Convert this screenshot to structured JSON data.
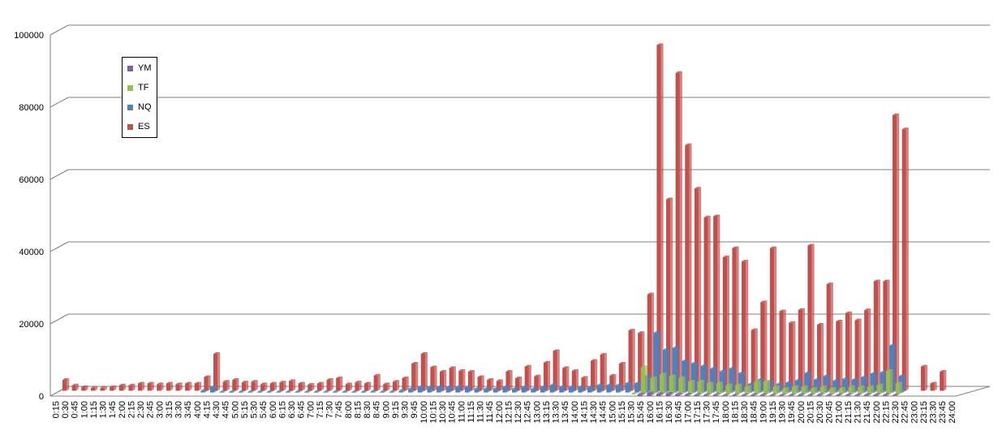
{
  "chart_data": {
    "type": "bar",
    "ylim": [
      0,
      100000
    ],
    "yticks": [
      0,
      20000,
      40000,
      60000,
      80000,
      100000
    ],
    "grid": true,
    "legend_position": "top-left",
    "categories": [
      "0:15",
      "0:30",
      "0:45",
      "1:00",
      "1:15",
      "1:30",
      "1:45",
      "2:00",
      "2:15",
      "2:30",
      "2:45",
      "3:00",
      "3:15",
      "3:30",
      "3:45",
      "4:00",
      "4:15",
      "4:30",
      "4:45",
      "5:00",
      "5:15",
      "5:30",
      "5:45",
      "6:00",
      "6:15",
      "6:30",
      "6:45",
      "7:00",
      "7:15",
      "7:30",
      "7:45",
      "8:00",
      "8:15",
      "8:30",
      "8:45",
      "9:00",
      "9:15",
      "9:30",
      "9:45",
      "10:00",
      "10:15",
      "10:30",
      "10:45",
      "11:00",
      "11:15",
      "11:30",
      "11:45",
      "12:00",
      "12:15",
      "12:30",
      "12:45",
      "13:00",
      "13:15",
      "13:30",
      "13:45",
      "14:00",
      "14:15",
      "14:30",
      "14:45",
      "15:00",
      "15:15",
      "15:30",
      "15:45",
      "16:00",
      "16:15",
      "16:30",
      "16:45",
      "17:00",
      "17:15",
      "17:30",
      "17:45",
      "18:00",
      "18:15",
      "18:30",
      "18:45",
      "19:00",
      "19:15",
      "19:30",
      "19:45",
      "20:00",
      "20:15",
      "20:30",
      "20:45",
      "21:00",
      "21:15",
      "21:30",
      "21:45",
      "22:00",
      "22:15",
      "22:30",
      "22:45",
      "23:00",
      "23:15",
      "23:30",
      "23:45",
      "24:00"
    ],
    "series": [
      {
        "name": "YM",
        "color": "#7e5fa6",
        "values": [
          0,
          0,
          0,
          0,
          0,
          0,
          0,
          0,
          0,
          0,
          0,
          0,
          0,
          0,
          0,
          0,
          0,
          0,
          0,
          0,
          0,
          0,
          0,
          0,
          0,
          0,
          0,
          0,
          0,
          0,
          0,
          0,
          0,
          0,
          0,
          0,
          0,
          0,
          0,
          0,
          0,
          0,
          0,
          0,
          0,
          0,
          0,
          0,
          0,
          0,
          0,
          0,
          0,
          0,
          0,
          0,
          0,
          0,
          0,
          0,
          0,
          0,
          500,
          800,
          600,
          700,
          500,
          400,
          300,
          300,
          300,
          200,
          200,
          200,
          300,
          300,
          200,
          200,
          200,
          300,
          200,
          300,
          200,
          200,
          200,
          200,
          300,
          300,
          300,
          200,
          0,
          0,
          0,
          0,
          0,
          0
        ]
      },
      {
        "name": "TF",
        "color": "#9bbb59",
        "values": [
          0,
          0,
          0,
          0,
          0,
          0,
          0,
          0,
          0,
          0,
          0,
          0,
          0,
          0,
          0,
          0,
          0,
          0,
          0,
          0,
          0,
          0,
          0,
          0,
          0,
          0,
          0,
          0,
          0,
          0,
          0,
          0,
          0,
          0,
          0,
          0,
          0,
          0,
          0,
          0,
          0,
          0,
          0,
          0,
          0,
          0,
          0,
          0,
          0,
          0,
          0,
          0,
          0,
          0,
          0,
          0,
          0,
          0,
          0,
          0,
          0,
          200,
          7500,
          4500,
          5500,
          5000,
          4500,
          3500,
          3500,
          3000,
          3000,
          2500,
          2500,
          2000,
          3500,
          3500,
          2000,
          1500,
          2000,
          2000,
          1500,
          2000,
          1500,
          1500,
          2000,
          2000,
          2000,
          2500,
          6500,
          3000,
          0,
          0,
          0,
          0,
          0,
          0
        ]
      },
      {
        "name": "NQ",
        "color": "#4f81bd",
        "values": [
          0,
          0,
          0,
          0,
          0,
          0,
          0,
          0,
          0,
          0,
          0,
          0,
          0,
          0,
          0,
          500,
          1500,
          200,
          200,
          200,
          200,
          200,
          200,
          200,
          200,
          200,
          200,
          200,
          200,
          200,
          200,
          200,
          200,
          300,
          200,
          200,
          500,
          1000,
          1500,
          1500,
          1500,
          1500,
          1500,
          1500,
          1000,
          1000,
          1000,
          1500,
          1000,
          1500,
          1000,
          1500,
          2000,
          1500,
          1500,
          1500,
          1500,
          2000,
          2000,
          2000,
          2500,
          2500,
          4500,
          16500,
          11800,
          12300,
          8700,
          8000,
          7300,
          6600,
          5800,
          6600,
          5300,
          2300,
          3500,
          3000,
          2300,
          2700,
          3300,
          5300,
          3500,
          4500,
          3200,
          3700,
          3500,
          4200,
          5200,
          5500,
          13000,
          4500,
          0,
          0,
          0,
          0,
          0,
          0
        ]
      },
      {
        "name": "ES",
        "color": "#c0504d",
        "values": [
          3000,
          1500,
          1000,
          800,
          800,
          1000,
          1500,
          1500,
          2000,
          2000,
          1800,
          2000,
          1800,
          2000,
          2000,
          3800,
          10200,
          2500,
          3000,
          2300,
          2500,
          1800,
          2000,
          2300,
          2700,
          2000,
          1700,
          2000,
          3000,
          3500,
          1800,
          2300,
          2000,
          4200,
          1800,
          2500,
          3500,
          7500,
          10200,
          6500,
          5300,
          6300,
          5500,
          5300,
          3800,
          3000,
          2700,
          5300,
          3500,
          6700,
          4000,
          7800,
          11000,
          6300,
          5500,
          3600,
          8300,
          10000,
          4200,
          7500,
          16700,
          16000,
          26700,
          95700,
          53000,
          88000,
          68000,
          56000,
          48000,
          48300,
          37000,
          39500,
          35800,
          16800,
          24500,
          39500,
          22000,
          18800,
          22400,
          40200,
          18300,
          29500,
          19200,
          21500,
          19500,
          22300,
          30300,
          30300,
          76300,
          72400,
          0,
          6700,
          2000,
          5300,
          0,
          0
        ]
      }
    ]
  }
}
